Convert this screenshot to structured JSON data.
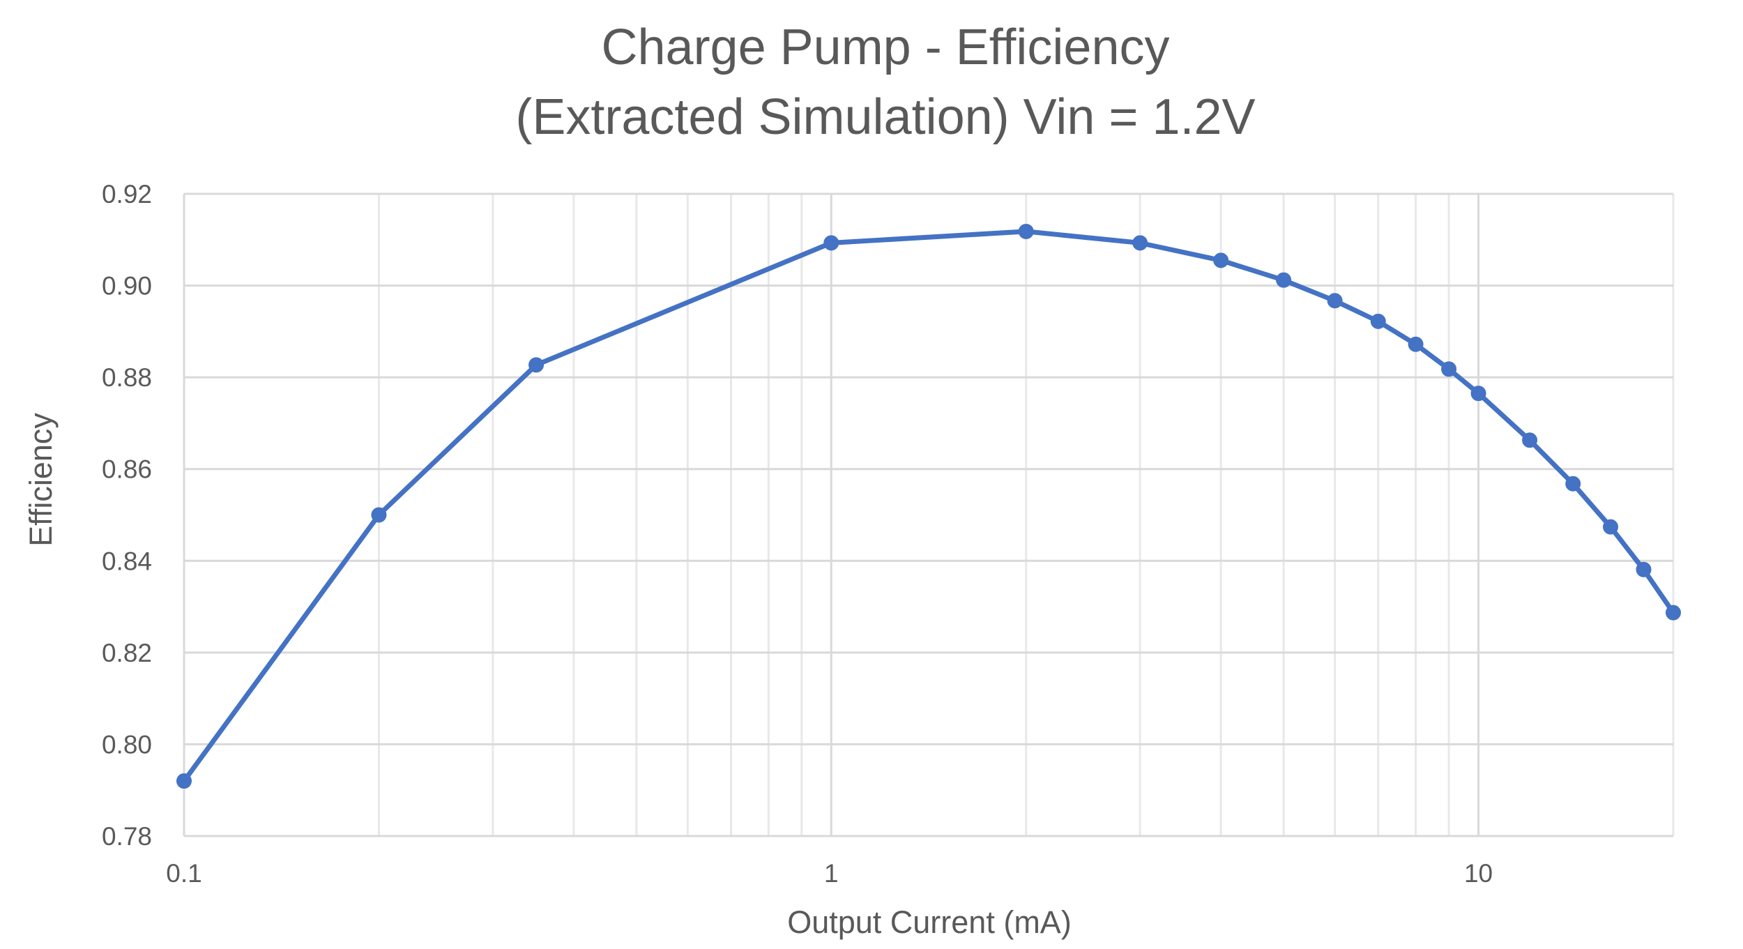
{
  "chart_data": {
    "type": "line",
    "title_lines": [
      "Charge Pump - Efficiency",
      "(Extracted Simulation) Vin = 1.2V"
    ],
    "xlabel": "Output Current (mA)",
    "ylabel": "Efficiency",
    "x_scale": "log",
    "xlim": [
      0.1,
      20
    ],
    "ylim": [
      0.78,
      0.92
    ],
    "x_ticks": [
      0.1,
      1,
      10
    ],
    "x_tick_labels": [
      "0.1",
      "1",
      "10"
    ],
    "y_ticks": [
      0.78,
      0.8,
      0.82,
      0.84,
      0.86,
      0.88,
      0.9,
      0.92
    ],
    "y_tick_labels": [
      "0.78",
      "0.80",
      "0.82",
      "0.84",
      "0.86",
      "0.88",
      "0.90",
      "0.92"
    ],
    "grid": true,
    "colors": {
      "series": "#4472c4",
      "text": "#595959",
      "grid": "#d9d9d9"
    },
    "series": [
      {
        "name": "Efficiency",
        "x": [
          0.1,
          0.2,
          0.35,
          1,
          2,
          3,
          4,
          5,
          6,
          7,
          8,
          9,
          10,
          12,
          14,
          16,
          18,
          20
        ],
        "y": [
          0.792,
          0.85,
          0.8827,
          0.9093,
          0.9118,
          0.9093,
          0.9055,
          0.9012,
          0.8967,
          0.8922,
          0.8872,
          0.8818,
          0.8765,
          0.8663,
          0.8568,
          0.8474,
          0.8381,
          0.8287
        ]
      }
    ]
  }
}
